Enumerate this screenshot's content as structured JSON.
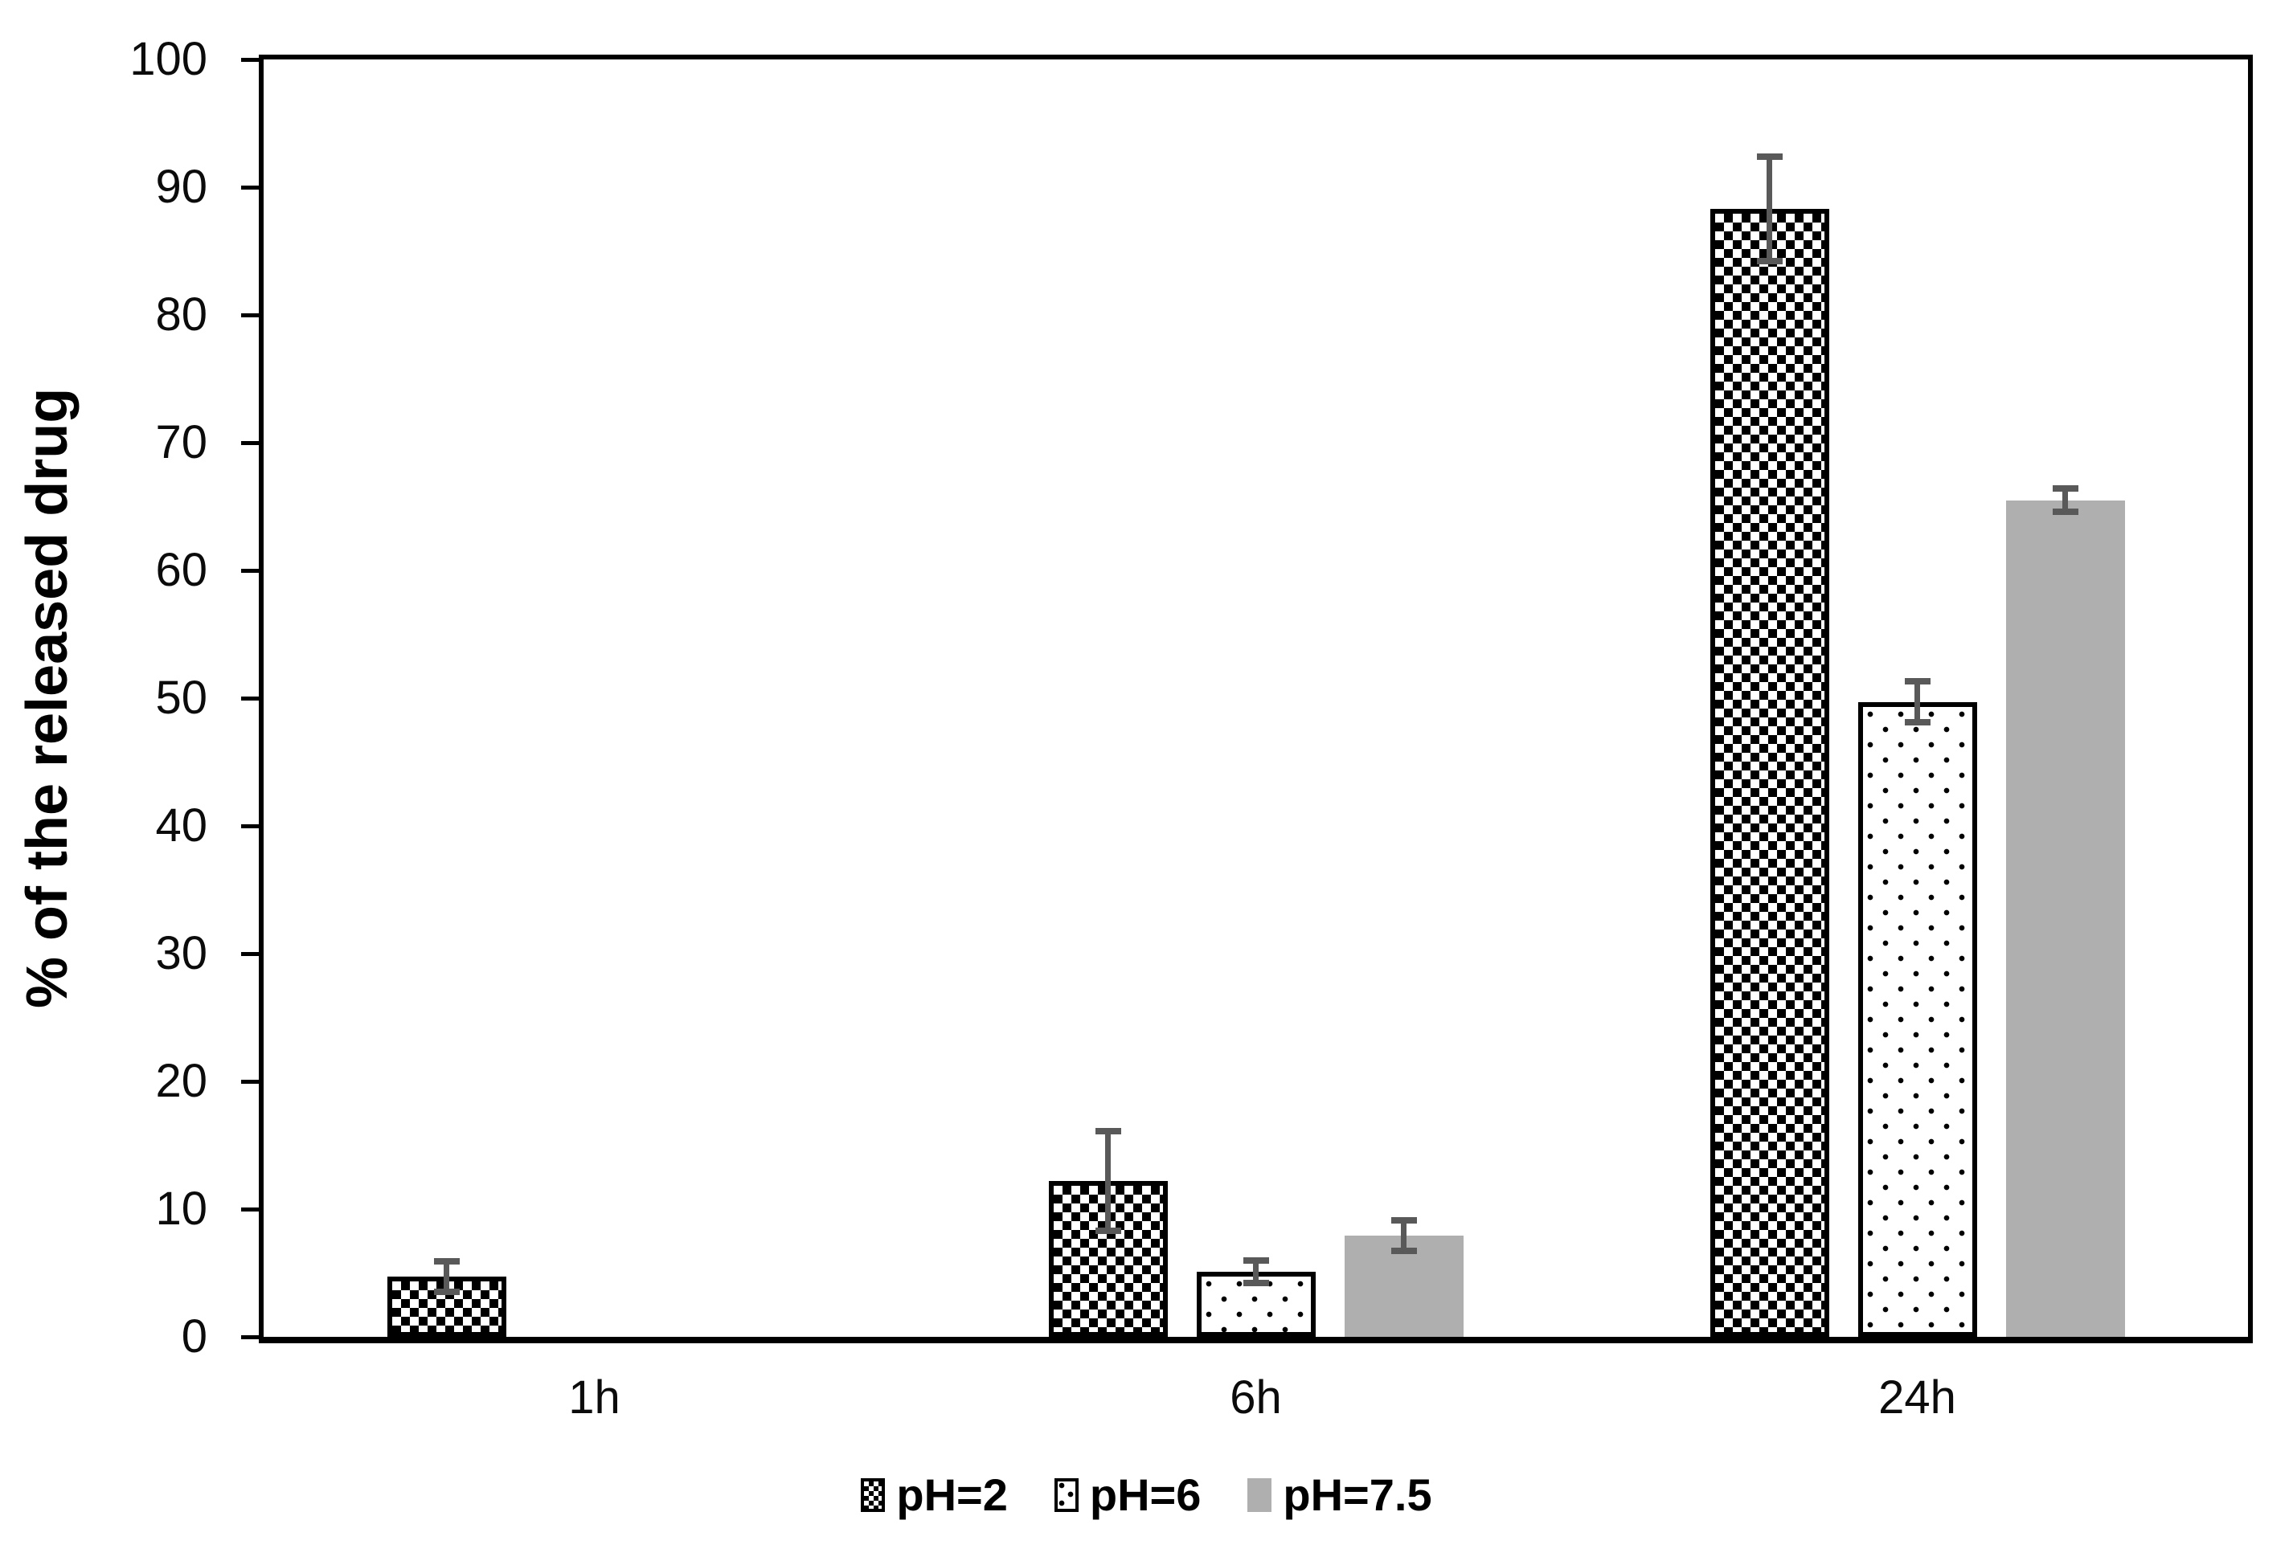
{
  "chart_data": {
    "type": "bar",
    "title": "",
    "ylabel": "% of the released drug",
    "xlabel": "",
    "categories": [
      "1h",
      "6h",
      "24h"
    ],
    "series": [
      {
        "name": "pH=2",
        "pattern": "checkerboard",
        "values": [
          4.7,
          12.2,
          88.3
        ],
        "errors": [
          1.2,
          3.9,
          4.1
        ]
      },
      {
        "name": "pH=6",
        "pattern": "dots",
        "values": [
          0,
          5.1,
          49.7
        ],
        "errors": [
          0,
          0.9,
          1.6
        ]
      },
      {
        "name": "pH=7.5",
        "pattern": "solid",
        "values": [
          0,
          7.9,
          65.5
        ],
        "errors": [
          0,
          1.2,
          0.9
        ]
      }
    ],
    "ylim": [
      0,
      100
    ],
    "yticks": [
      0,
      10,
      20,
      30,
      40,
      50,
      60,
      70,
      80,
      90,
      100
    ],
    "grid": false,
    "legend_position": "bottom",
    "error_bars": true,
    "colors": {
      "checker_fg": "#000000",
      "checker_bg": "#ffffff",
      "dots_fg": "#000000",
      "dots_bg": "#ffffff",
      "solid_gray": "#AFAFAF",
      "error_bar": "#595959",
      "axis": "#000000",
      "text": "#0b0b0b"
    }
  }
}
